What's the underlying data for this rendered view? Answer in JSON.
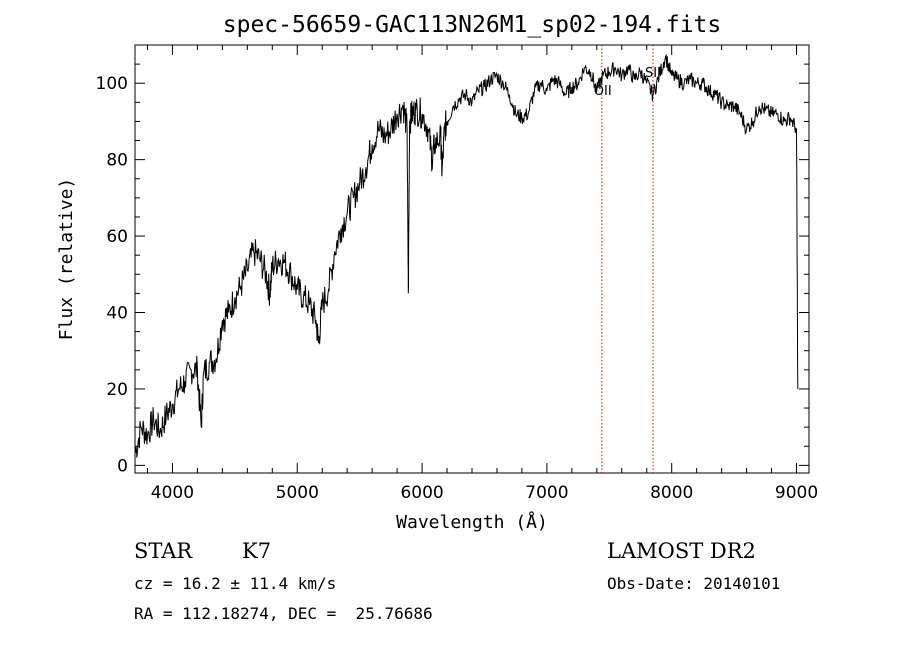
{
  "chart_data": {
    "type": "line",
    "title": "spec-56659-GAC113N26M1_sp02-194.fits",
    "xlabel": "Wavelength (Å)",
    "ylabel": "Flux (relative)",
    "xlim": [
      3700,
      9100
    ],
    "ylim": [
      -2,
      110
    ],
    "x_ticks": [
      4000,
      5000,
      6000,
      7000,
      8000,
      9000
    ],
    "y_ticks": [
      0,
      20,
      40,
      60,
      80,
      100
    ],
    "grid": false,
    "series": [
      {
        "x": [
          3700,
          3750,
          3800,
          3850,
          3900,
          3950,
          4000,
          4050,
          4100,
          4150,
          4200,
          4230,
          4250,
          4300,
          4350,
          4400,
          4450,
          4500,
          4550,
          4600,
          4650,
          4700,
          4750,
          4780,
          4800,
          4850,
          4900,
          4950,
          5000,
          5050,
          5100,
          5150,
          5170,
          5200,
          5250,
          5300,
          5350,
          5400,
          5450,
          5500,
          5550,
          5600,
          5650,
          5700,
          5750,
          5800,
          5850,
          5880,
          5890,
          5900,
          5920,
          5950,
          6000,
          6050,
          6080,
          6100,
          6150,
          6160,
          6180,
          6200,
          6250,
          6300,
          6350,
          6400,
          6450,
          6500,
          6550,
          6600,
          6650,
          6700,
          6750,
          6800,
          6850,
          6900,
          6950,
          7000,
          7050,
          7100,
          7150,
          7200,
          7250,
          7300,
          7350,
          7400,
          7450,
          7500,
          7550,
          7600,
          7650,
          7700,
          7750,
          7800,
          7850,
          7900,
          7950,
          8000,
          8050,
          8100,
          8150,
          8200,
          8250,
          8300,
          8350,
          8400,
          8450,
          8500,
          8550,
          8600,
          8650,
          8700,
          8750,
          8800,
          8850,
          8900,
          8950,
          9000,
          9010
        ],
        "y": [
          3,
          10,
          8,
          12,
          9,
          13,
          16,
          20,
          22,
          25,
          25,
          10,
          24,
          27,
          28,
          38,
          40,
          44,
          47,
          51,
          56,
          54,
          50,
          45,
          52,
          54,
          53,
          50,
          46,
          44,
          42,
          38,
          32,
          42,
          46,
          56,
          62,
          66,
          70,
          74,
          78,
          84,
          88,
          86,
          88,
          92,
          94,
          88,
          45,
          90,
          92,
          93,
          92,
          88,
          80,
          84,
          86,
          76,
          88,
          90,
          94,
          96,
          97,
          95,
          98,
          99,
          101,
          102,
          100,
          97,
          92,
          91,
          92,
          98,
          100,
          98,
          101,
          100,
          97,
          99,
          100,
          104,
          103,
          98,
          102,
          103,
          104,
          102,
          104,
          101,
          103,
          100,
          97,
          102,
          107,
          102,
          101,
          100,
          101,
          100,
          100,
          98,
          97,
          95,
          94,
          94,
          92,
          88,
          90,
          94,
          93,
          92,
          92,
          90,
          91,
          88,
          20
        ]
      }
    ],
    "lines": [
      {
        "label": "OII",
        "x": 7440
      },
      {
        "label": "SII",
        "x": 7850
      }
    ]
  },
  "info": {
    "class": "STAR",
    "subclass": "K7",
    "survey": "LAMOST DR2",
    "cz": "cz = 16.2 ± 11.4 km/s",
    "obs_date": "Obs-Date: 20140101",
    "coords": "RA = 112.18274, DEC =  25.76686"
  }
}
